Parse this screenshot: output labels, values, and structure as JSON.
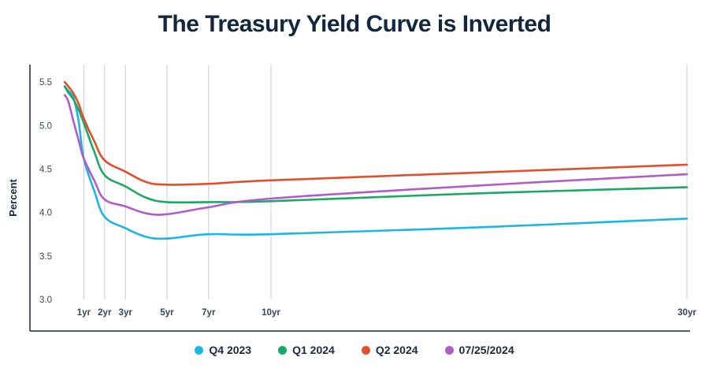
{
  "chart_data": {
    "type": "line",
    "title": "The Treasury Yield Curve is Inverted",
    "xlabel": "",
    "ylabel": "Percent",
    "xlim": [
      0,
      30
    ],
    "ylim": [
      3.0,
      5.7
    ],
    "yticks": [
      3.0,
      3.5,
      4.0,
      4.5,
      5.0,
      5.5
    ],
    "ytick_labels": [
      "3.0",
      "3.5",
      "4.0",
      "4.5",
      "5.0",
      "5.5"
    ],
    "xticks": [
      1,
      2,
      3,
      5,
      7,
      10,
      30
    ],
    "xtick_labels": [
      "1yr",
      "2yr",
      "3yr",
      "5yr",
      "7yr",
      "10yr",
      "30yr"
    ],
    "x_tick_gridlines": true,
    "legend_position": "bottom",
    "series": [
      {
        "name": "Q4 2023",
        "color": "#1cb5e6",
        "points": [
          [
            0.08,
            5.45
          ],
          [
            0.25,
            5.4
          ],
          [
            0.5,
            5.32
          ],
          [
            0.75,
            5.05
          ],
          [
            1,
            4.62
          ],
          [
            1.5,
            4.25
          ],
          [
            2,
            3.95
          ],
          [
            3,
            3.82
          ],
          [
            4,
            3.72
          ],
          [
            5,
            3.7
          ],
          [
            7,
            3.75
          ],
          [
            10,
            3.75
          ],
          [
            20,
            3.83
          ],
          [
            30,
            3.93
          ]
        ]
      },
      {
        "name": "Q1 2024",
        "color": "#1aa865",
        "points": [
          [
            0.08,
            5.45
          ],
          [
            0.25,
            5.38
          ],
          [
            0.5,
            5.3
          ],
          [
            0.75,
            5.18
          ],
          [
            1,
            5.03
          ],
          [
            1.5,
            4.7
          ],
          [
            2,
            4.43
          ],
          [
            3,
            4.3
          ],
          [
            4,
            4.17
          ],
          [
            5,
            4.12
          ],
          [
            7,
            4.12
          ],
          [
            10,
            4.13
          ],
          [
            20,
            4.22
          ],
          [
            30,
            4.29
          ]
        ]
      },
      {
        "name": "Q2 2024",
        "color": "#e0502a",
        "points": [
          [
            0.08,
            5.5
          ],
          [
            0.25,
            5.45
          ],
          [
            0.5,
            5.37
          ],
          [
            0.75,
            5.25
          ],
          [
            1,
            5.08
          ],
          [
            1.5,
            4.82
          ],
          [
            2,
            4.6
          ],
          [
            3,
            4.47
          ],
          [
            4,
            4.35
          ],
          [
            5,
            4.32
          ],
          [
            7,
            4.33
          ],
          [
            10,
            4.37
          ],
          [
            20,
            4.46
          ],
          [
            30,
            4.55
          ]
        ]
      },
      {
        "name": "07/25/2024",
        "color": "#b15dc8",
        "points": [
          [
            0.08,
            5.35
          ],
          [
            0.25,
            5.28
          ],
          [
            0.5,
            5.05
          ],
          [
            0.75,
            4.83
          ],
          [
            1,
            4.62
          ],
          [
            1.5,
            4.37
          ],
          [
            2,
            4.15
          ],
          [
            3,
            4.07
          ],
          [
            4,
            3.99
          ],
          [
            5,
            3.98
          ],
          [
            7,
            4.06
          ],
          [
            10,
            4.16
          ],
          [
            20,
            4.31
          ],
          [
            30,
            4.44
          ]
        ]
      }
    ]
  }
}
